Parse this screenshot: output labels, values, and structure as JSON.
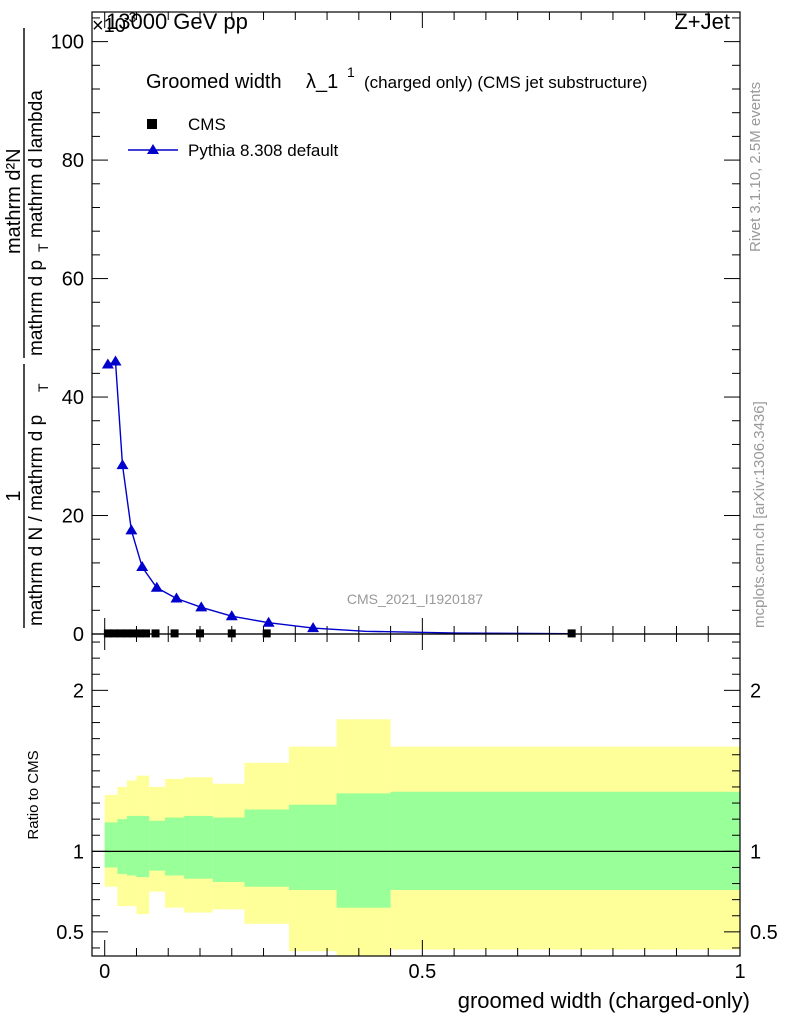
{
  "header": {
    "left_label": "13000 GeV pp",
    "right_label": "Z+Jet",
    "exponent_label": "×10",
    "exponent_power": "-3"
  },
  "side_labels": {
    "right_top": "Rivet 3.1.10,  2.5M events",
    "right_bottom": "mcplots.cern.ch [arXiv:1306.3436]"
  },
  "colors": {
    "pythia": "#0000cc",
    "cms_marker": "#000000",
    "band_inner": "#99ff99",
    "band_outer": "#ffff99",
    "watermark": "#999999"
  },
  "chart_data": [
    {
      "type": "line",
      "title_main": "Groomed width",
      "title_symbol": "λ_1",
      "title_sup": "1",
      "title_suffix": "(charged only) (CMS jet substructure)",
      "ylabel_num": "mathrm d²N",
      "ylabel_den_part1": "mathrm d p",
      "ylabel_den_sub1": "T",
      "ylabel_den_part2": " mathrm d lambda",
      "ylabel_prefix_num": "1",
      "ylabel_prefix_den": "mathrm d N / mathrm d p",
      "ylabel_prefix_sub": "T",
      "ylim": [
        0,
        105
      ],
      "xlim": [
        -0.02,
        1.0
      ],
      "yticks": [
        0,
        20,
        40,
        60,
        80,
        100
      ],
      "ytick_labels": [
        "0",
        "20",
        "40",
        "60",
        "80",
        "100"
      ],
      "watermark": "CMS_2021_I1920187",
      "legend": {
        "position": "top-left"
      },
      "series": [
        {
          "name": "CMS",
          "marker": "square",
          "x": [
            0.005,
            0.015,
            0.025,
            0.035,
            0.045,
            0.055,
            0.065,
            0.08,
            0.11,
            0.15,
            0.2,
            0.255,
            0.735
          ],
          "y": [
            0.1,
            0.1,
            0.1,
            0.1,
            0.1,
            0.1,
            0.1,
            0.1,
            0.1,
            0.1,
            0.1,
            0.1,
            0.1
          ]
        },
        {
          "name": "Pythia 8.308 default",
          "marker": "triangle",
          "x": [
            0.005,
            0.017,
            0.028,
            0.042,
            0.059,
            0.082,
            0.113,
            0.152,
            0.2,
            0.258,
            0.328,
            0.41,
            0.555,
            0.735
          ],
          "y": [
            45.5,
            46.0,
            28.5,
            17.5,
            11.3,
            7.8,
            6.0,
            4.5,
            3.0,
            1.9,
            1.0,
            0.45,
            0.15,
            0.05
          ]
        }
      ]
    },
    {
      "type": "area",
      "ylabel": "Ratio to CMS",
      "xlabel": "groomed width (charged-only)",
      "xlim": [
        -0.02,
        1.0
      ],
      "ylim": [
        0.35,
        2.35
      ],
      "xticks": [
        0,
        0.5,
        1
      ],
      "xtick_labels": [
        "0",
        "0.5",
        "1"
      ],
      "yticks": [
        0.5,
        1,
        2
      ],
      "ytick_labels": [
        "0.5",
        "1",
        "2"
      ],
      "reference_line": 1,
      "bins": [
        {
          "x0": 0.0,
          "x1": 0.02,
          "inner": [
            0.9,
            1.18
          ],
          "outer": [
            0.78,
            1.35
          ]
        },
        {
          "x0": 0.02,
          "x1": 0.035,
          "inner": [
            0.86,
            1.2
          ],
          "outer": [
            0.66,
            1.4
          ]
        },
        {
          "x0": 0.035,
          "x1": 0.05,
          "inner": [
            0.85,
            1.22
          ],
          "outer": [
            0.66,
            1.44
          ]
        },
        {
          "x0": 0.05,
          "x1": 0.07,
          "inner": [
            0.84,
            1.22
          ],
          "outer": [
            0.61,
            1.47
          ]
        },
        {
          "x0": 0.07,
          "x1": 0.095,
          "inner": [
            0.88,
            1.19
          ],
          "outer": [
            0.75,
            1.4
          ]
        },
        {
          "x0": 0.095,
          "x1": 0.125,
          "inner": [
            0.85,
            1.21
          ],
          "outer": [
            0.65,
            1.45
          ]
        },
        {
          "x0": 0.125,
          "x1": 0.17,
          "inner": [
            0.83,
            1.22
          ],
          "outer": [
            0.62,
            1.46
          ]
        },
        {
          "x0": 0.17,
          "x1": 0.22,
          "inner": [
            0.81,
            1.21
          ],
          "outer": [
            0.64,
            1.42
          ]
        },
        {
          "x0": 0.22,
          "x1": 0.29,
          "inner": [
            0.78,
            1.26
          ],
          "outer": [
            0.55,
            1.55
          ]
        },
        {
          "x0": 0.29,
          "x1": 0.365,
          "inner": [
            0.76,
            1.29
          ],
          "outer": [
            0.38,
            1.65
          ]
        },
        {
          "x0": 0.365,
          "x1": 0.45,
          "inner": [
            0.65,
            1.36
          ],
          "outer": [
            0.35,
            1.82
          ]
        },
        {
          "x0": 0.45,
          "x1": 1.0,
          "inner": [
            0.76,
            1.37
          ],
          "outer": [
            0.39,
            1.65
          ]
        }
      ]
    }
  ]
}
